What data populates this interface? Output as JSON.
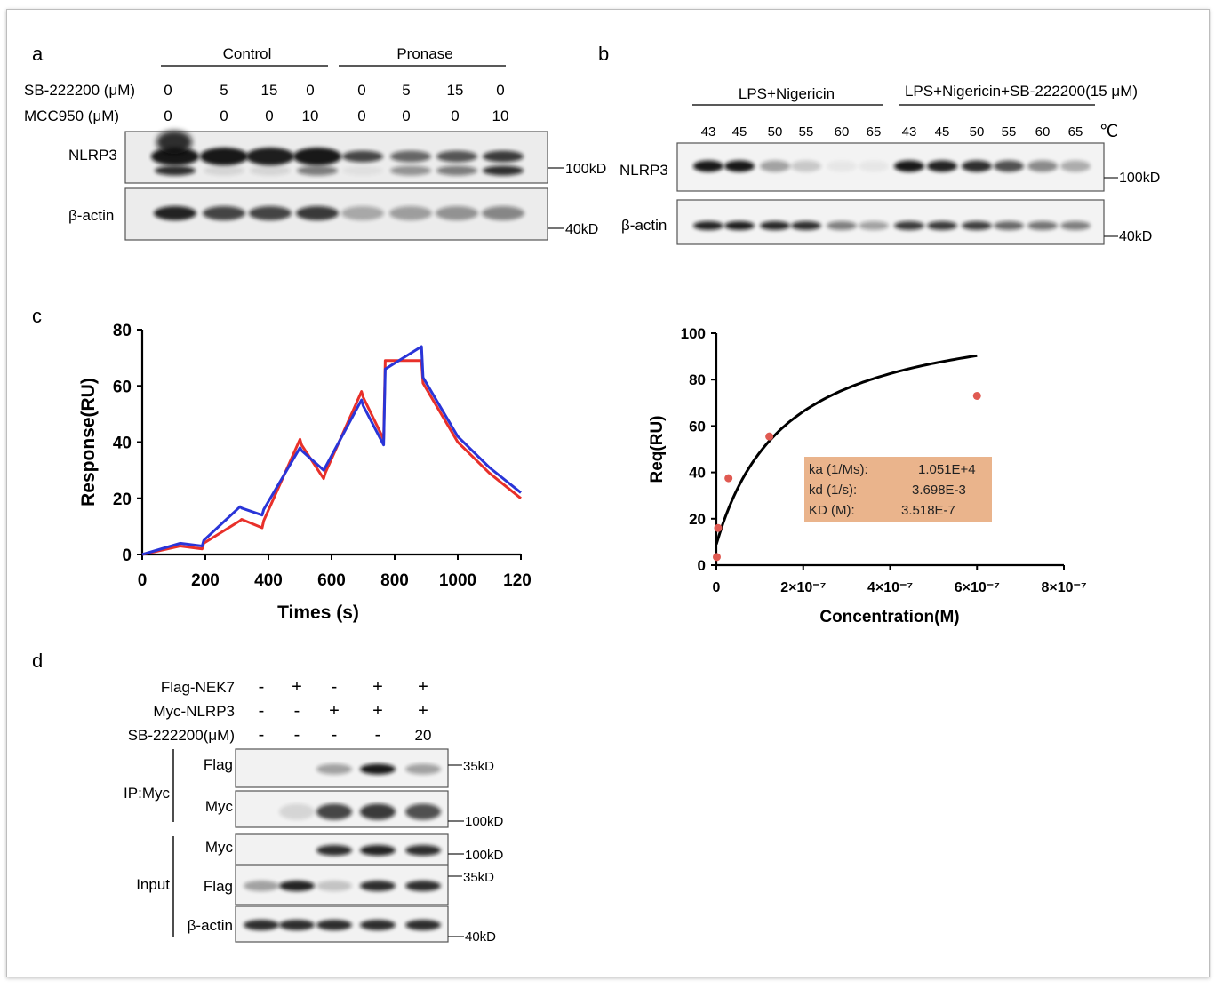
{
  "panel_a": {
    "letter": "a",
    "group_labels": [
      "Control",
      "Pronase"
    ],
    "row_labels": [
      "SB-222200 (μM)",
      "MCC950 (μM)"
    ],
    "sb_values": [
      "0",
      "5",
      "15",
      "0",
      "0",
      "5",
      "15",
      "0"
    ],
    "mcc_values": [
      "0",
      "0",
      "0",
      "10",
      "0",
      "0",
      "0",
      "10"
    ],
    "blot_labels": [
      "NLRP3",
      "β-actin"
    ],
    "markers": [
      "100kD",
      "40kD"
    ]
  },
  "panel_b": {
    "letter": "b",
    "group_labels": [
      "LPS+Nigericin",
      "LPS+Nigericin+SB-222200(15 μM)"
    ],
    "temps": [
      "43",
      "45",
      "50",
      "55",
      "60",
      "65",
      "43",
      "45",
      "50",
      "55",
      "60",
      "65"
    ],
    "unit": "℃",
    "blot_labels": [
      "NLRP3",
      "β-actin"
    ],
    "markers": [
      "100kD",
      "40kD"
    ]
  },
  "panel_c": {
    "letter": "c",
    "fit_box": [
      {
        "label": "ka (1/Ms):",
        "value": "1.051E+4"
      },
      {
        "label": "kd (1/s):",
        "value": "3.698E-3"
      },
      {
        "label": "KD (M):",
        "value": "3.518E-7"
      }
    ],
    "fit_box_color": "#eab48c"
  },
  "chart_data": [
    {
      "type": "line",
      "xlabel": "Times (s)",
      "ylabel": "Response(RU)",
      "xlim": [
        0,
        1200
      ],
      "ylim": [
        0,
        80
      ],
      "x_ticks": [
        "0",
        "200",
        "400",
        "600",
        "800",
        "1000",
        "120"
      ],
      "y_ticks": [
        "0",
        "20",
        "40",
        "60",
        "80"
      ],
      "series": [
        {
          "color": "#e8302a",
          "x": [
            0,
            120,
            190,
            195,
            310,
            315,
            380,
            385,
            500,
            505,
            575,
            580,
            695,
            700,
            765,
            770,
            885,
            890,
            1000,
            1100,
            1200
          ],
          "y": [
            0,
            3,
            2,
            4,
            12,
            12.5,
            9.5,
            12,
            41,
            39,
            27,
            29,
            58,
            56,
            41,
            69,
            69,
            61,
            40,
            29,
            20
          ]
        },
        {
          "color": "#2a35d8",
          "x": [
            0,
            120,
            190,
            195,
            310,
            315,
            380,
            385,
            500,
            505,
            575,
            580,
            695,
            700,
            765,
            770,
            885,
            890,
            1000,
            1100,
            1200
          ],
          "y": [
            0,
            4,
            3,
            5,
            17,
            16.5,
            14,
            16,
            38,
            37,
            30,
            31,
            55,
            53,
            39,
            66,
            74,
            63,
            42,
            31,
            22
          ]
        }
      ]
    },
    {
      "type": "scatter",
      "xlabel": "Concentration(M)",
      "ylabel": "Req(RU)",
      "xlim": [
        0,
        8e-07
      ],
      "ylim": [
        0,
        100
      ],
      "x_ticks": [
        "0",
        "2×10⁻⁷",
        "4×10⁻⁷",
        "6×10⁻⁷",
        "8×10⁻⁷"
      ],
      "y_ticks": [
        "0",
        "20",
        "40",
        "60",
        "80",
        "100"
      ],
      "points": {
        "color": "#e05a52",
        "x": [
          1e-09,
          4e-09,
          2.8e-08,
          1.22e-07,
          6e-07
        ],
        "y": [
          3.5,
          16,
          37.5,
          55.5,
          73
        ]
      },
      "fit": {
        "color": "#000000",
        "bmax": 112,
        "kd": 1.6e-07,
        "x_end": 6e-07
      }
    }
  ],
  "panel_d": {
    "letter": "d",
    "row_labels": [
      "Flag-NEK7",
      "Myc-NLRP3",
      "SB-222200(μM)"
    ],
    "flag_nek7": [
      "-",
      "+",
      "-",
      "+",
      "+"
    ],
    "myc_nlrp3": [
      "-",
      "-",
      "+",
      "+",
      "+"
    ],
    "sb": [
      "-",
      "-",
      "-",
      "-",
      "20"
    ],
    "group_labels": [
      "IP:Myc",
      "Input"
    ],
    "blot_labels": [
      "Flag",
      "Myc",
      "Myc",
      "Flag",
      "β-actin"
    ],
    "markers": [
      "35kD",
      "100kD",
      "100kD",
      "35kD",
      "40kD"
    ]
  }
}
